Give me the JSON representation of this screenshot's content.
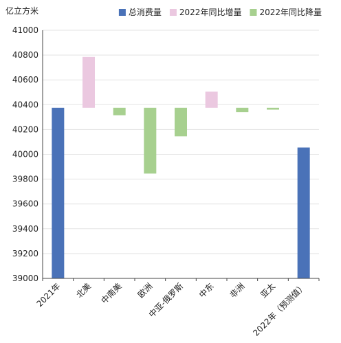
{
  "chart_data": {
    "type": "bar",
    "subtype": "waterfall",
    "unit_label": "亿立方米",
    "ylim": [
      39000,
      41000
    ],
    "ytick_step": 200,
    "grid": true,
    "legend_position": "top-right",
    "legend": [
      {
        "key": "total",
        "label": "总消费量",
        "color": "#4a72b8"
      },
      {
        "key": "increase",
        "label": "2022年同比增量",
        "color": "#ebc8e0"
      },
      {
        "key": "decrease",
        "label": "2022年同比降量",
        "color": "#a7d08f"
      }
    ],
    "categories": [
      "2021年",
      "北美",
      "中南美",
      "欧洲",
      "中亚-俄罗斯",
      "中东",
      "非洲",
      "亚太",
      "2022年（预测值）"
    ],
    "bars": [
      {
        "kind": "total",
        "start": 39000,
        "end": 40375
      },
      {
        "kind": "increase",
        "start": 40375,
        "end": 40785
      },
      {
        "kind": "decrease",
        "start": 40375,
        "end": 40315
      },
      {
        "kind": "decrease",
        "start": 40375,
        "end": 39845
      },
      {
        "kind": "decrease",
        "start": 40375,
        "end": 40145
      },
      {
        "kind": "increase",
        "start": 40375,
        "end": 40505
      },
      {
        "kind": "decrease",
        "start": 40375,
        "end": 40340
      },
      {
        "kind": "decrease",
        "start": 40375,
        "end": 40360
      },
      {
        "kind": "total",
        "start": 39000,
        "end": 40055
      }
    ]
  }
}
